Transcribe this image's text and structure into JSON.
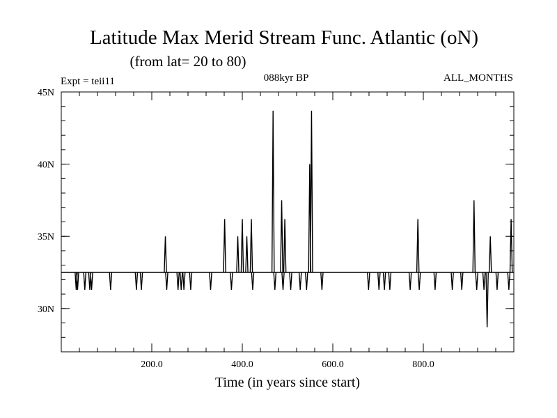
{
  "chart_data": {
    "type": "line",
    "title": "Latitude Max Merid Stream Func. Atlantic (oN)",
    "subtitle": "(from lat= 20 to 80)",
    "annotations": {
      "left": "Expt = teii11",
      "center": "088kyr BP",
      "right": "ALL_MONTHS"
    },
    "xlabel": "Time (in years since start)",
    "ylabel": "",
    "xlim": [
      0,
      1000
    ],
    "ylim": [
      27,
      45
    ],
    "grid": false,
    "x_ticks": [
      {
        "value": 200,
        "label": "200.0"
      },
      {
        "value": 400,
        "label": "400.0"
      },
      {
        "value": 600,
        "label": "600.0"
      },
      {
        "value": 800,
        "label": "800.0"
      }
    ],
    "x_minor_step": 40,
    "y_ticks": [
      {
        "value": 30,
        "label": "30N"
      },
      {
        "value": 35,
        "label": "35N"
      },
      {
        "value": 40,
        "label": "40N"
      },
      {
        "value": 45,
        "label": "45N"
      }
    ],
    "y_minor_step": 1,
    "baseline": 32.5,
    "spikes": [
      {
        "x": 33,
        "y": 31.3
      },
      {
        "x": 36,
        "y": 31.3
      },
      {
        "x": 52,
        "y": 31.3
      },
      {
        "x": 63,
        "y": 31.3
      },
      {
        "x": 67,
        "y": 31.3
      },
      {
        "x": 109,
        "y": 31.3
      },
      {
        "x": 166,
        "y": 31.3
      },
      {
        "x": 177,
        "y": 31.3
      },
      {
        "x": 230,
        "y": 35.0
      },
      {
        "x": 233,
        "y": 31.3
      },
      {
        "x": 258,
        "y": 31.3
      },
      {
        "x": 265,
        "y": 31.3
      },
      {
        "x": 271,
        "y": 31.3
      },
      {
        "x": 286,
        "y": 31.3
      },
      {
        "x": 330,
        "y": 31.3
      },
      {
        "x": 361,
        "y": 36.2
      },
      {
        "x": 376,
        "y": 31.3
      },
      {
        "x": 390,
        "y": 35.0
      },
      {
        "x": 400,
        "y": 36.2
      },
      {
        "x": 410,
        "y": 35.0
      },
      {
        "x": 420,
        "y": 36.2
      },
      {
        "x": 423,
        "y": 31.3
      },
      {
        "x": 468,
        "y": 43.7
      },
      {
        "x": 472,
        "y": 31.3
      },
      {
        "x": 487,
        "y": 37.5
      },
      {
        "x": 490,
        "y": 31.3
      },
      {
        "x": 494,
        "y": 36.2
      },
      {
        "x": 507,
        "y": 31.3
      },
      {
        "x": 528,
        "y": 31.3
      },
      {
        "x": 542,
        "y": 31.3
      },
      {
        "x": 549,
        "y": 40.0
      },
      {
        "x": 553,
        "y": 43.7
      },
      {
        "x": 576,
        "y": 31.3
      },
      {
        "x": 679,
        "y": 31.3
      },
      {
        "x": 702,
        "y": 31.3
      },
      {
        "x": 714,
        "y": 31.3
      },
      {
        "x": 726,
        "y": 31.3
      },
      {
        "x": 771,
        "y": 31.3
      },
      {
        "x": 788,
        "y": 36.2
      },
      {
        "x": 791,
        "y": 31.3
      },
      {
        "x": 826,
        "y": 31.3
      },
      {
        "x": 864,
        "y": 31.3
      },
      {
        "x": 885,
        "y": 31.3
      },
      {
        "x": 912,
        "y": 37.5
      },
      {
        "x": 918,
        "y": 31.3
      },
      {
        "x": 934,
        "y": 31.3
      },
      {
        "x": 941,
        "y": 28.7
      },
      {
        "x": 948,
        "y": 35.0
      },
      {
        "x": 963,
        "y": 31.3
      },
      {
        "x": 989,
        "y": 31.3
      },
      {
        "x": 994,
        "y": 36.2
      }
    ]
  }
}
